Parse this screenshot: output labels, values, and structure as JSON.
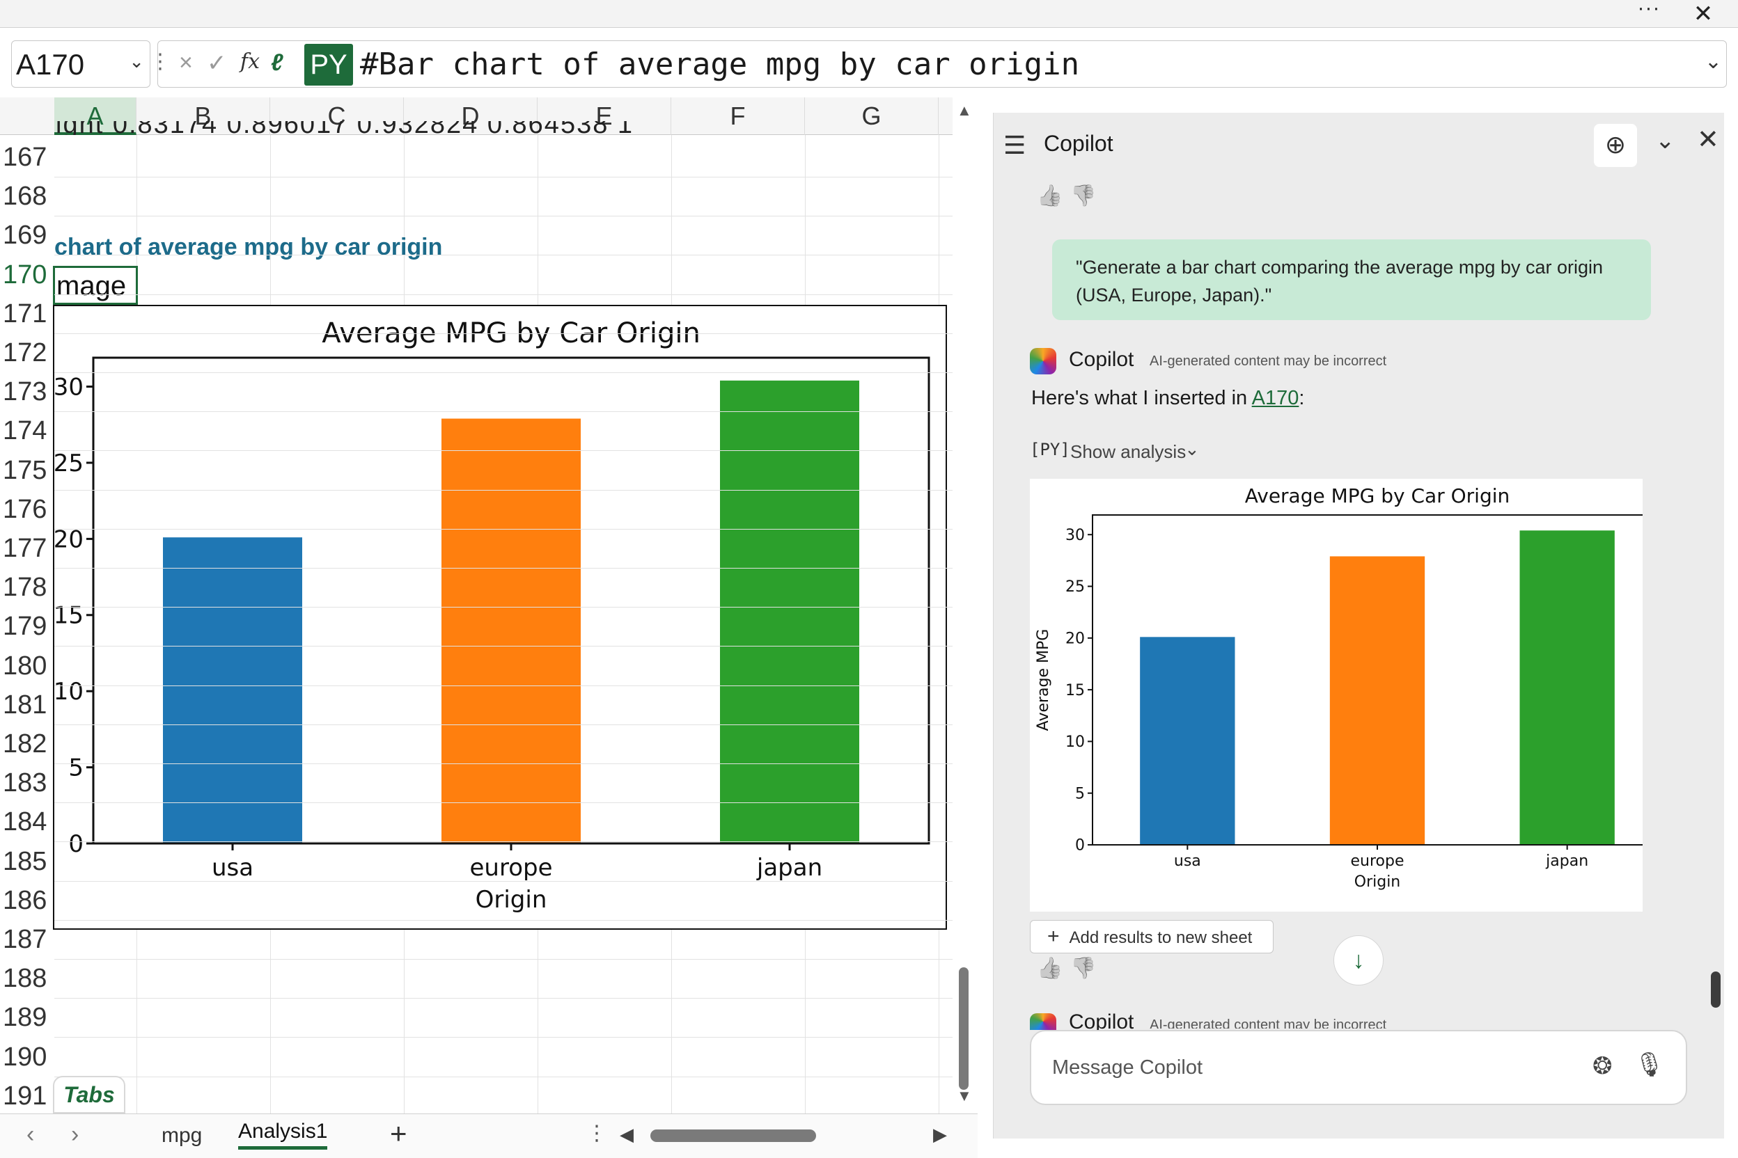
{
  "window": {
    "more_label": "···",
    "close_label": "✕"
  },
  "formula_bar": {
    "name_box": "A170",
    "cancel_icon": "×",
    "enter_icon": "✓",
    "fx_label": "fx",
    "py_badge": "PY",
    "formula": "#Bar chart of average mpg by car origin",
    "expand_icon": "⌄"
  },
  "grid": {
    "columns": [
      "A",
      "B",
      "C",
      "D",
      "E",
      "F",
      "G"
    ],
    "selected_column": "A",
    "rows": [
      "167",
      "168",
      "169",
      "170",
      "171",
      "172",
      "173",
      "174",
      "175",
      "176",
      "177",
      "178",
      "179",
      "180",
      "181",
      "182",
      "183",
      "184",
      "185",
      "186",
      "187",
      "188",
      "189",
      "190",
      "191"
    ],
    "selected_row": "170",
    "cut_row_text": "ight 0.83174 0.896017 0.932824 0.864538 1",
    "title_cell": "chart of average mpg by car origin",
    "active_cell_value": "mage"
  },
  "chart_data": [
    {
      "type": "bar",
      "title": "Average MPG by Car Origin",
      "categories": [
        "usa",
        "europe",
        "japan"
      ],
      "values": [
        20.1,
        27.9,
        30.4
      ],
      "colors": [
        "#1f77b4",
        "#ff7f0e",
        "#2ca02c"
      ],
      "xlabel": "Origin",
      "ylabel": "",
      "yticks": [
        0,
        5,
        10,
        15,
        20,
        25,
        30
      ],
      "ylim": [
        0,
        31.9
      ]
    },
    {
      "type": "bar",
      "title": "Average MPG by Car Origin",
      "categories": [
        "usa",
        "europe",
        "japan"
      ],
      "values": [
        20.1,
        27.9,
        30.4
      ],
      "colors": [
        "#1f77b4",
        "#ff7f0e",
        "#2ca02c"
      ],
      "xlabel": "Origin",
      "ylabel": "Average MPG",
      "yticks": [
        0,
        5,
        10,
        15,
        20,
        25,
        30
      ],
      "ylim": [
        0,
        31.9
      ]
    }
  ],
  "tabs_logo": "Tabs",
  "sheet_bar": {
    "prev_icon": "‹",
    "next_icon": "›",
    "tabs": [
      "mpg",
      "Analysis1"
    ],
    "active_tab": "Analysis1",
    "add_icon": "+",
    "more_icon": "⋮"
  },
  "copilot": {
    "title": "Copilot",
    "menu_icon": "☰",
    "new_chat_icon": "⊕",
    "chevron_icon": "⌄",
    "close_icon": "✕",
    "thumbs_up": "👍",
    "thumbs_down": "👎",
    "user_message": "\"Generate a bar chart comparing the average mpg by car origin (USA, Europe, Japan).\"",
    "assistant_name": "Copilot",
    "disclaimer": "AI-generated content may be incorrect",
    "inserted_prefix": "Here's what I inserted in ",
    "inserted_link": "A170",
    "inserted_suffix": ":",
    "py_icon": "[PY]",
    "show_analysis": "Show analysis",
    "show_analysis_chevron": "⌄",
    "add_results": "Add results to new sheet",
    "add_results_icon": "+",
    "scroll_down_icon": "↓",
    "assistant_name_2": "Copilot",
    "disclaimer_2": "AI-generated content may be incorrect",
    "message_placeholder": "Message Copilot",
    "brain_icon": "❂",
    "mic_icon": "🎙"
  }
}
